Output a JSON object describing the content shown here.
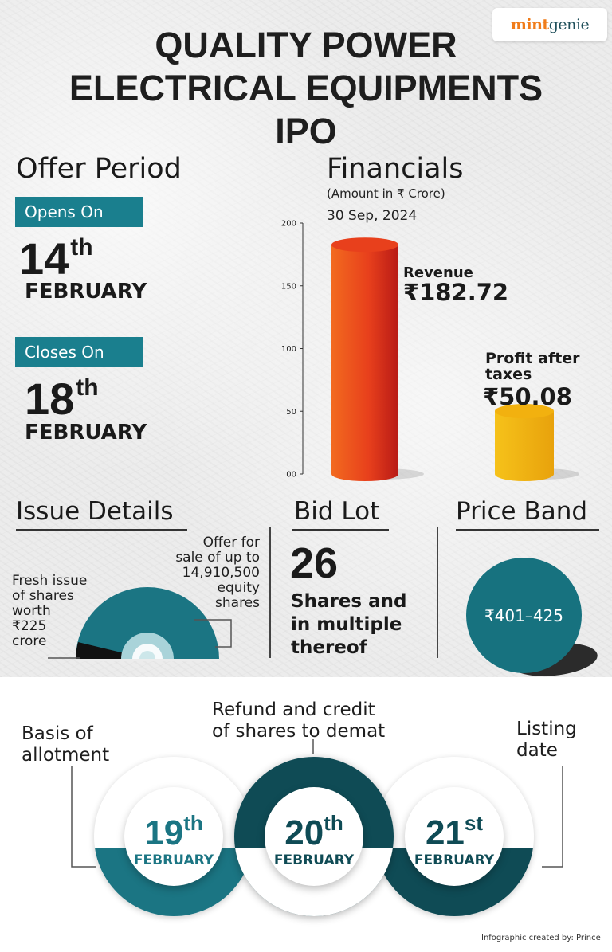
{
  "brand": {
    "logo_part1": "mint",
    "logo_part2": "genie"
  },
  "title": {
    "line1": "QUALITY POWER",
    "line2": "ELECTRICAL EQUIPMENTS",
    "line3": "IPO"
  },
  "offer_period": {
    "heading": "Offer Period",
    "opens": {
      "label": "Opens On",
      "day": "14",
      "suffix": "th",
      "month": "FEBRUARY"
    },
    "closes": {
      "label": "Closes On",
      "day": "18",
      "suffix": "th",
      "month": "FEBRUARY"
    }
  },
  "financials": {
    "heading": "Financials",
    "unit_note": "(Amount in ₹ Crore)",
    "period": "30 Sep, 2024",
    "revenue_label": "Revenue",
    "revenue_value": "₹182.72",
    "pat_label_line1": "Profit after",
    "pat_label_line2": "taxes",
    "pat_value": "₹50.08"
  },
  "chart_data": {
    "type": "bar",
    "categories": [
      "Revenue",
      "Profit after taxes"
    ],
    "values": [
      182.72,
      50.08
    ],
    "ylim": [
      0,
      200
    ],
    "yticks": [
      "00",
      "50",
      "100",
      "150",
      "200"
    ],
    "colors": [
      "#e8401c",
      "#f2b10f"
    ]
  },
  "issue_details": {
    "heading": "Issue Details",
    "fresh_lines": [
      "Fresh issue",
      "of shares",
      "worth",
      "₹225",
      "crore"
    ],
    "ofs_lines": [
      "Offer for",
      "sale of up to",
      "14,910,500",
      "equity",
      "shares"
    ]
  },
  "bid_lot": {
    "heading": "Bid Lot",
    "value": "26",
    "line1": "Shares and",
    "line2": "in multiple",
    "line3": "thereof"
  },
  "price_band": {
    "heading": "Price Band",
    "value": "₹401–425"
  },
  "timeline": {
    "basis_line1": "Basis of",
    "basis_line2": "allotment",
    "refund_line1": "Refund and credit",
    "refund_line2": "of shares to demat",
    "listing_line1": "Listing",
    "listing_line2": "date",
    "dates": [
      {
        "day": "19",
        "suffix": "th",
        "month": "FEBRUARY"
      },
      {
        "day": "20",
        "suffix": "th",
        "month": "FEBRUARY"
      },
      {
        "day": "21",
        "suffix": "st",
        "month": "FEBRUARY"
      }
    ],
    "colors": {
      "teal": "#1b7583",
      "dark_teal": "#0f4b55"
    }
  },
  "credit": "Infographic created by: Prince"
}
